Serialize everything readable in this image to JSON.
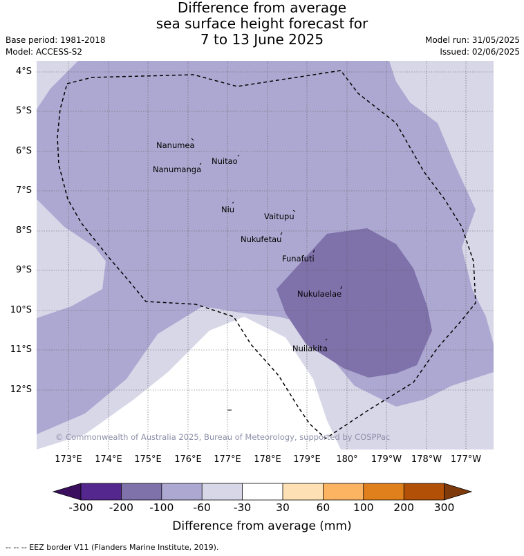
{
  "title": {
    "line1": "Difference from average",
    "line2": "sea surface height forecast for",
    "line3": "7 to 13 June 2025"
  },
  "meta": {
    "base_period": "Base period: 1981-2018",
    "model": "Model: ACCESS-S2",
    "model_run": "Model run: 31/05/2025",
    "issued": "Issued: 02/06/2025"
  },
  "map": {
    "latitude_labels": [
      "4°S",
      "5°S",
      "6°S",
      "7°S",
      "8°S",
      "9°S",
      "10°S",
      "11°S",
      "12°S"
    ],
    "longitude_labels": [
      "173°E",
      "174°E",
      "175°E",
      "176°E",
      "177°E",
      "178°E",
      "179°E",
      "180°",
      "179°W",
      "178°W",
      "177°W"
    ],
    "islands": [
      "Nanumea",
      "Nuitao",
      "Nanumanga",
      "Niu",
      "Vaitupu",
      "Nukufetau",
      "Funafuti",
      "Nukulaelae",
      "Nuilakita"
    ],
    "copyright": "© Commonwealth of Australia 2025, Bureau of Meteorology, supported by COSPPac",
    "colors": {
      "range_-200_-100": "#7f72ab",
      "range_-100_-60": "#ada8d1",
      "range_-60_-30": "#d8d7e8",
      "range_-30_30": "#ffffff"
    }
  },
  "colorbar": {
    "ticks": [
      "-300",
      "-200",
      "-100",
      "-60",
      "-30",
      "30",
      "60",
      "100",
      "200",
      "300"
    ],
    "label": "Difference from average (mm)",
    "colors": [
      "#3b0f5e",
      "#54278f",
      "#7f72ab",
      "#ada8d1",
      "#d8d7e8",
      "#ffffff",
      "#fde0b4",
      "#fdb462",
      "#e0801c",
      "#b15006",
      "#7f3a0c"
    ]
  },
  "footer": "-- -- -- EEZ border V11 (Flanders Marine Institute, 2019)."
}
